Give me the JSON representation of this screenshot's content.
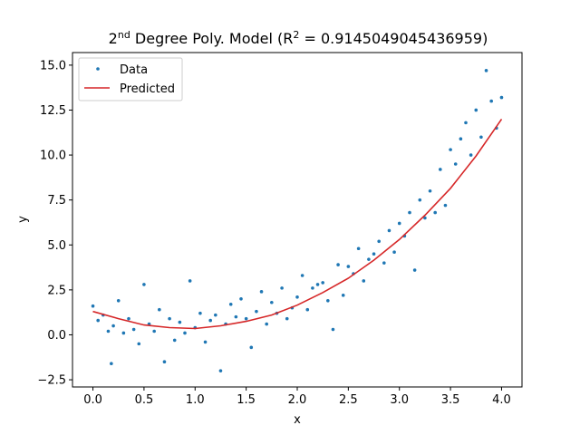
{
  "chart_data": {
    "type": "scatter",
    "title": {
      "prefix": "2",
      "sup": "nd",
      "middle": " Degree Poly. Model (R",
      "sup2": "2",
      "suffix": " = 0.9145049045436959)"
    },
    "xlabel": "x",
    "ylabel": "y",
    "xlim": [
      -0.2,
      4.2
    ],
    "ylim": [
      -2.9,
      15.7
    ],
    "xticks": [
      0.0,
      0.5,
      1.0,
      1.5,
      2.0,
      2.5,
      3.0,
      3.5,
      4.0
    ],
    "xtick_labels": [
      "0.0",
      "0.5",
      "1.0",
      "1.5",
      "2.0",
      "2.5",
      "3.0",
      "3.5",
      "4.0"
    ],
    "yticks": [
      -2.5,
      0.0,
      2.5,
      5.0,
      7.5,
      10.0,
      12.5,
      15.0
    ],
    "ytick_labels": [
      "−2.5",
      "0.0",
      "2.5",
      "5.0",
      "7.5",
      "10.0",
      "12.5",
      "15.0"
    ],
    "grid": false,
    "legend_position": "top-left",
    "series": [
      {
        "name": "Data",
        "kind": "scatter",
        "color": "#1f77b4",
        "x": [
          0.0,
          0.05,
          0.1,
          0.15,
          0.18,
          0.2,
          0.25,
          0.3,
          0.35,
          0.4,
          0.45,
          0.5,
          0.55,
          0.6,
          0.65,
          0.7,
          0.75,
          0.8,
          0.85,
          0.9,
          0.95,
          1.0,
          1.05,
          1.1,
          1.15,
          1.2,
          1.25,
          1.3,
          1.35,
          1.4,
          1.45,
          1.5,
          1.55,
          1.6,
          1.65,
          1.7,
          1.75,
          1.8,
          1.85,
          1.9,
          1.95,
          2.0,
          2.05,
          2.1,
          2.15,
          2.2,
          2.25,
          2.3,
          2.35,
          2.4,
          2.45,
          2.5,
          2.55,
          2.6,
          2.65,
          2.7,
          2.75,
          2.8,
          2.85,
          2.9,
          2.95,
          3.0,
          3.05,
          3.1,
          3.15,
          3.2,
          3.25,
          3.3,
          3.35,
          3.4,
          3.45,
          3.5,
          3.55,
          3.6,
          3.65,
          3.7,
          3.75,
          3.8,
          3.85,
          3.9,
          3.95,
          4.0
        ],
        "y": [
          1.6,
          0.8,
          1.1,
          0.2,
          -1.6,
          0.5,
          1.9,
          0.1,
          0.9,
          0.3,
          -0.5,
          2.8,
          0.6,
          0.2,
          1.4,
          -1.5,
          0.9,
          -0.3,
          0.7,
          0.1,
          3.0,
          0.4,
          1.2,
          -0.4,
          0.8,
          1.1,
          -2.0,
          0.6,
          1.7,
          1.0,
          2.0,
          0.9,
          -0.7,
          1.3,
          2.4,
          0.6,
          1.8,
          1.2,
          2.6,
          0.9,
          1.5,
          2.1,
          3.3,
          1.4,
          2.6,
          2.8,
          2.9,
          1.9,
          0.3,
          3.9,
          2.2,
          3.8,
          3.4,
          4.8,
          3.0,
          4.2,
          4.5,
          5.2,
          4.0,
          5.8,
          4.6,
          6.2,
          5.5,
          6.8,
          3.6,
          7.5,
          6.5,
          8.0,
          6.8,
          9.2,
          7.2,
          10.3,
          9.5,
          10.9,
          11.8,
          10.0,
          12.5,
          11.0,
          14.7,
          13.0,
          11.5,
          13.2
        ]
      },
      {
        "name": "Predicted",
        "kind": "line",
        "color": "#d62728",
        "x": [
          0.0,
          0.25,
          0.5,
          0.75,
          1.0,
          1.25,
          1.5,
          1.75,
          2.0,
          2.25,
          2.5,
          2.75,
          3.0,
          3.25,
          3.5,
          3.75,
          4.0
        ],
        "y": [
          1.3,
          0.9,
          0.55,
          0.4,
          0.35,
          0.5,
          0.75,
          1.1,
          1.65,
          2.35,
          3.15,
          4.15,
          5.3,
          6.65,
          8.15,
          9.95,
          12.0
        ]
      }
    ]
  }
}
